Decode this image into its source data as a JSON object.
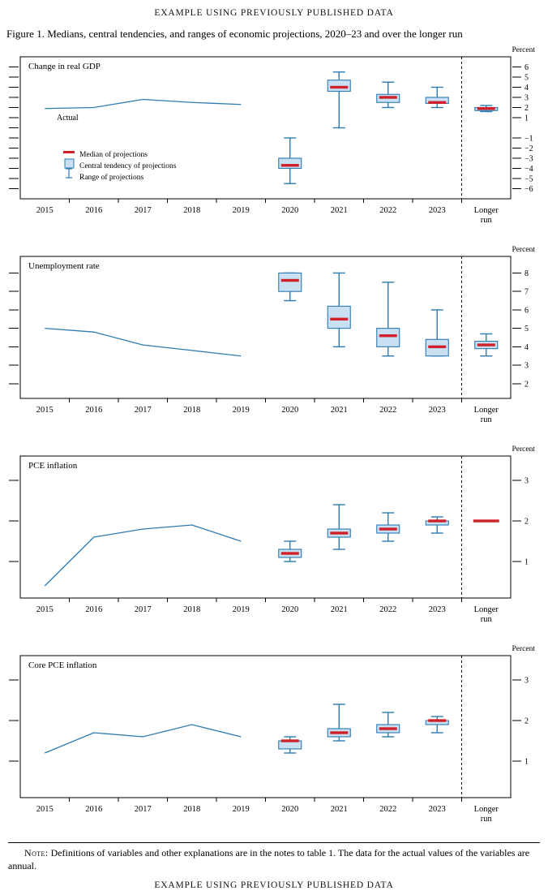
{
  "page": {
    "header_eyebrow": "EXAMPLE USING PREVIOUSLY PUBLISHED DATA",
    "figure_title": "Figure 1. Medians, central tendencies, and ranges of economic projections, 2020–23 and over the longer run",
    "note_label": "Note:",
    "note_text": "Definitions of variables and other explanations are in the notes to table 1. The data for the actual values of the variables are annual.",
    "footer_eyebrow": "EXAMPLE USING PREVIOUSLY PUBLISHED DATA"
  },
  "colors": {
    "blue": "#2c7bb2",
    "box_fill": "#c9dff2",
    "median_red": "#d0212b",
    "axis": "#000000"
  },
  "legend": [
    "Median of projections",
    "Central tendency of projections",
    "Range of projections"
  ],
  "x_axis": {
    "years": [
      "2015",
      "2016",
      "2017",
      "2018",
      "2019",
      "2020",
      "2021",
      "2022",
      "2023"
    ],
    "longer_run_label": [
      "Longer",
      "run"
    ]
  },
  "chart_data": [
    {
      "id": "gdp",
      "type": "boxplot",
      "title": "Change in real GDP",
      "unit_label": "Percent",
      "ylim": [
        -7,
        7
      ],
      "yticks": [
        6,
        5,
        4,
        3,
        2,
        1,
        -1,
        -2,
        -3,
        -4,
        -5,
        -6
      ],
      "yticks_unlabeled": [
        0
      ],
      "show_legend": true,
      "actual": {
        "label": "Actual",
        "years": [
          "2015",
          "2016",
          "2017",
          "2018",
          "2019"
        ],
        "values": [
          1.9,
          2.0,
          2.8,
          2.5,
          2.3
        ]
      },
      "projections": [
        {
          "x": "2020",
          "median": -3.7,
          "central_tendency": [
            -4.0,
            -3.0
          ],
          "range": [
            -5.5,
            -1.0
          ]
        },
        {
          "x": "2021",
          "median": 4.0,
          "central_tendency": [
            3.6,
            4.7
          ],
          "range": [
            0.0,
            5.5
          ]
        },
        {
          "x": "2022",
          "median": 3.0,
          "central_tendency": [
            2.5,
            3.3
          ],
          "range": [
            2.0,
            4.5
          ]
        },
        {
          "x": "2023",
          "median": 2.5,
          "central_tendency": [
            2.4,
            3.0
          ],
          "range": [
            2.0,
            4.0
          ]
        }
      ],
      "longer_run": {
        "x": "longer-run",
        "median": 1.9,
        "central_tendency": [
          1.7,
          2.0
        ],
        "range": [
          1.6,
          2.2
        ]
      }
    },
    {
      "id": "unemployment",
      "type": "boxplot",
      "title": "Unemployment rate",
      "unit_label": "Percent",
      "ylim": [
        1.2,
        8.9
      ],
      "yticks": [
        8,
        7,
        6,
        5,
        4,
        3,
        2
      ],
      "yticks_unlabeled": [],
      "show_legend": false,
      "actual": {
        "years": [
          "2015",
          "2016",
          "2017",
          "2018",
          "2019"
        ],
        "values": [
          5.0,
          4.8,
          4.1,
          3.8,
          3.5
        ]
      },
      "projections": [
        {
          "x": "2020",
          "median": 7.6,
          "central_tendency": [
            7.0,
            8.0
          ],
          "range": [
            6.5,
            8.0
          ]
        },
        {
          "x": "2021",
          "median": 5.5,
          "central_tendency": [
            5.0,
            6.2
          ],
          "range": [
            4.0,
            8.0
          ]
        },
        {
          "x": "2022",
          "median": 4.6,
          "central_tendency": [
            4.0,
            5.0
          ],
          "range": [
            3.5,
            7.5
          ]
        },
        {
          "x": "2023",
          "median": 4.0,
          "central_tendency": [
            3.5,
            4.4
          ],
          "range": [
            3.5,
            6.0
          ]
        }
      ],
      "longer_run": {
        "x": "longer-run",
        "median": 4.1,
        "central_tendency": [
          3.9,
          4.3
        ],
        "range": [
          3.5,
          4.7
        ]
      }
    },
    {
      "id": "pce-inflation",
      "type": "boxplot",
      "title": "PCE inflation",
      "unit_label": "Percent",
      "ylim": [
        0.1,
        3.6
      ],
      "yticks": [
        3,
        2,
        1
      ],
      "yticks_unlabeled": [],
      "show_legend": false,
      "actual": {
        "years": [
          "2015",
          "2016",
          "2017",
          "2018",
          "2019"
        ],
        "values": [
          0.4,
          1.6,
          1.8,
          1.9,
          1.5
        ]
      },
      "projections": [
        {
          "x": "2020",
          "median": 1.2,
          "central_tendency": [
            1.1,
            1.3
          ],
          "range": [
            1.0,
            1.5
          ]
        },
        {
          "x": "2021",
          "median": 1.7,
          "central_tendency": [
            1.6,
            1.8
          ],
          "range": [
            1.3,
            2.4
          ]
        },
        {
          "x": "2022",
          "median": 1.8,
          "central_tendency": [
            1.7,
            1.9
          ],
          "range": [
            1.5,
            2.2
          ]
        },
        {
          "x": "2023",
          "median": 2.0,
          "central_tendency": [
            1.9,
            2.0
          ],
          "range": [
            1.7,
            2.1
          ]
        }
      ],
      "longer_run": {
        "x": "longer-run",
        "median": 2.0,
        "central_tendency": [
          2.0,
          2.0
        ],
        "range": [
          2.0,
          2.0
        ]
      }
    },
    {
      "id": "core-pce-inflation",
      "type": "boxplot",
      "title": "Core PCE inflation",
      "unit_label": "Percent",
      "ylim": [
        0.1,
        3.6
      ],
      "yticks": [
        3,
        2,
        1
      ],
      "yticks_unlabeled": [],
      "show_legend": false,
      "actual": {
        "years": [
          "2015",
          "2016",
          "2017",
          "2018",
          "2019"
        ],
        "values": [
          1.2,
          1.7,
          1.6,
          1.9,
          1.6
        ]
      },
      "projections": [
        {
          "x": "2020",
          "median": 1.5,
          "central_tendency": [
            1.3,
            1.5
          ],
          "range": [
            1.2,
            1.6
          ]
        },
        {
          "x": "2021",
          "median": 1.7,
          "central_tendency": [
            1.6,
            1.8
          ],
          "range": [
            1.5,
            2.4
          ]
        },
        {
          "x": "2022",
          "median": 1.8,
          "central_tendency": [
            1.7,
            1.9
          ],
          "range": [
            1.6,
            2.2
          ]
        },
        {
          "x": "2023",
          "median": 2.0,
          "central_tendency": [
            1.9,
            2.0
          ],
          "range": [
            1.7,
            2.1
          ]
        }
      ],
      "longer_run": null
    }
  ]
}
